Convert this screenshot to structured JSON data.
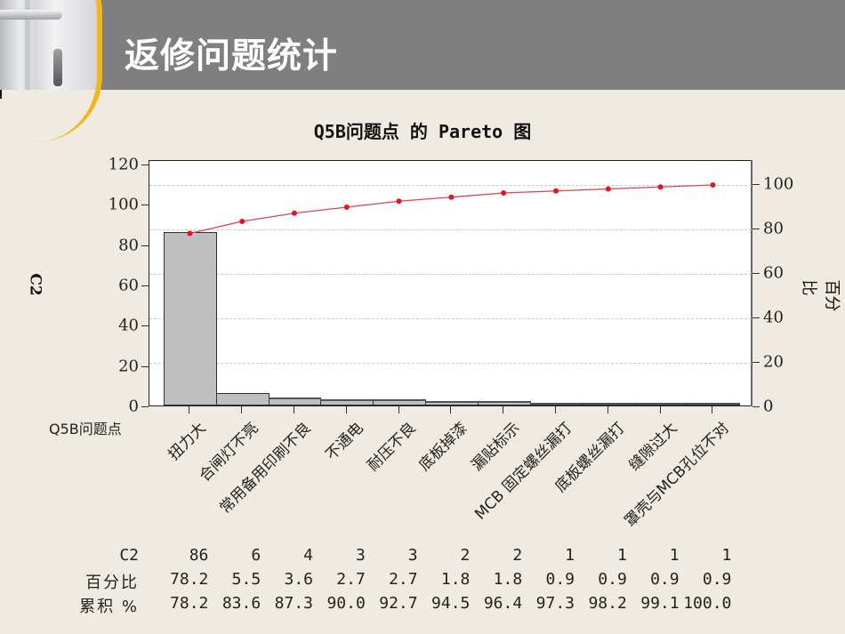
{
  "header": {
    "title": "返修问题统计"
  },
  "chart_data": {
    "type": "bar",
    "subtype": "pareto",
    "title": "Q5B问题点 的 Pareto 图",
    "xlabel": "Q5B问题点",
    "ylabel": "C2",
    "ylabel_right": "百分比",
    "ylim": [
      0,
      120
    ],
    "ylim_right": [
      0,
      110
    ],
    "yticks_left": [
      0,
      20,
      40,
      60,
      80,
      100,
      120
    ],
    "yticks_right": [
      0,
      20,
      40,
      60,
      80,
      100
    ],
    "grid": "dashed horizontal at right-axis ticks",
    "categories": [
      "扭力大",
      "合闸灯不亮",
      "常用备用印刷不良",
      "不通电",
      "耐压不良",
      "底板掉漆",
      "漏贴标示",
      "MCB 固定螺丝漏打",
      "底板螺丝漏打",
      "缝隙过大",
      "罩壳与MCB孔位不对"
    ],
    "series": [
      {
        "name": "C2",
        "type": "bar",
        "values": [
          86,
          6,
          4,
          3,
          3,
          2,
          2,
          1,
          1,
          1,
          1
        ]
      },
      {
        "name": "累积 %",
        "type": "line",
        "axis": "right",
        "values": [
          78.2,
          83.6,
          87.3,
          90.0,
          92.7,
          94.5,
          96.4,
          97.3,
          98.2,
          99.1,
          100.0
        ]
      }
    ],
    "percent": [
      78.2,
      5.5,
      3.6,
      2.7,
      2.7,
      1.8,
      1.8,
      0.9,
      0.9,
      0.9,
      0.9
    ],
    "colors": {
      "bar": "#bfbfbf",
      "line": "#e8121b"
    }
  },
  "table": {
    "rows": [
      {
        "label": "C2",
        "values": [
          "86",
          "6",
          "4",
          "3",
          "3",
          "2",
          "2",
          "1",
          "1",
          "1",
          "1"
        ]
      },
      {
        "label": "百分比",
        "values": [
          "78.2",
          "5.5",
          "3.6",
          "2.7",
          "2.7",
          "1.8",
          "1.8",
          "0.9",
          "0.9",
          "0.9",
          "0.9"
        ]
      },
      {
        "label": "累积 %",
        "values": [
          "78.2",
          "83.6",
          "87.3",
          "90.0",
          "92.7",
          "94.5",
          "96.4",
          "97.3",
          "98.2",
          "99.1",
          "100.0"
        ]
      }
    ]
  }
}
